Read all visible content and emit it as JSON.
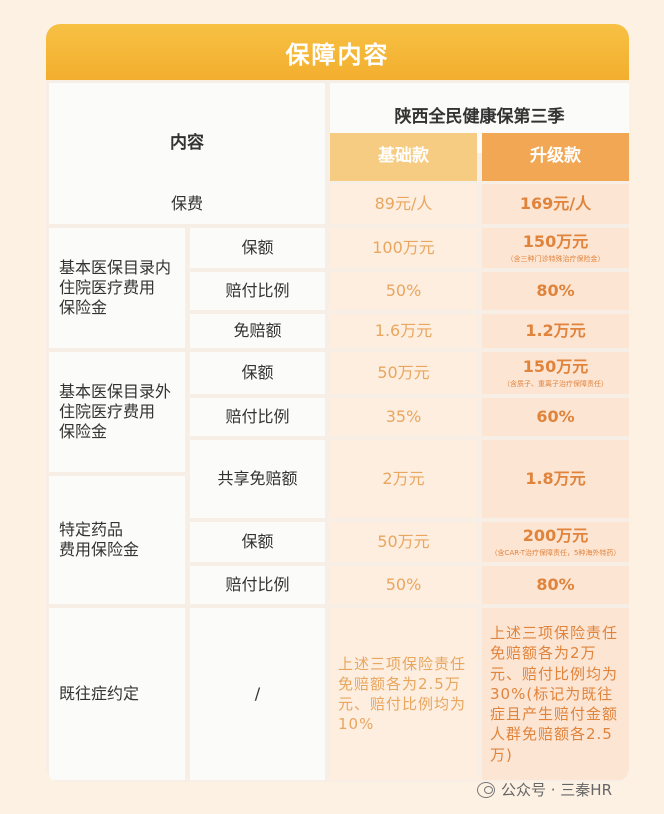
{
  "title": "保障内容",
  "header": {
    "content_label": "内容",
    "product_name": "陕西全民健康保第三季",
    "basic_label": "基础款",
    "upgrade_label": "升级款"
  },
  "premium": {
    "label": "保费",
    "basic": "89元/人",
    "upgrade": "169元/人"
  },
  "section1": {
    "label": "基本医保目录内\n住院医疗费用\n保险金",
    "coverage": {
      "label": "保额",
      "basic": "100万元",
      "upgrade": "150万元",
      "upgrade_note": "（含三种门诊特殊治疗保险金）"
    },
    "ratio": {
      "label": "赔付比例",
      "basic": "50%",
      "upgrade": "80%"
    },
    "deductible": {
      "label": "免赔额",
      "basic": "1.6万元",
      "upgrade": "1.2万元"
    }
  },
  "section2": {
    "label": "基本医保目录外\n住院医疗费用\n保险金",
    "coverage": {
      "label": "保额",
      "basic": "50万元",
      "upgrade": "150万元",
      "upgrade_note": "（含质子、重离子治疗保障责任）"
    },
    "ratio": {
      "label": "赔付比例",
      "basic": "35%",
      "upgrade": "60%"
    }
  },
  "shared_deductible": {
    "label": "共享免赔额",
    "basic": "2万元",
    "upgrade": "1.8万元"
  },
  "section3": {
    "label": "特定药品\n费用保险金",
    "coverage": {
      "label": "保额",
      "basic": "50万元",
      "upgrade": "200万元",
      "upgrade_note": "（含CAR-T治疗保障责任，5种海外特药）"
    },
    "ratio": {
      "label": "赔付比例",
      "basic": "50%",
      "upgrade": "80%"
    }
  },
  "preexisting": {
    "label": "既往症约定",
    "sub": "/",
    "basic": "上述三项保险责任免赔额各为2.5万元、赔付比例均为10%",
    "upgrade": "上述三项保险责任免赔额各为2万元、赔付比例均为30%(标记为既往症且产生赔付金额人群免赔额各2.5万)"
  },
  "watermark": {
    "icon": "wechat-icon",
    "text": "公众号 · 三秦HR"
  }
}
